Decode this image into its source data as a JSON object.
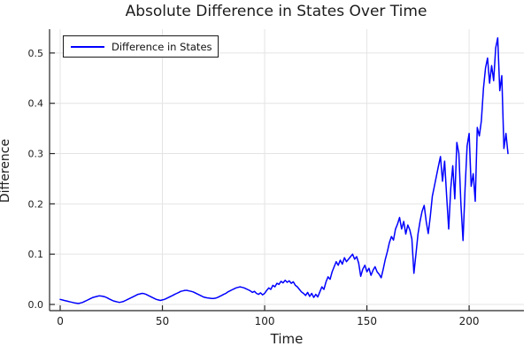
{
  "figure": {
    "background_color": "#ffffff",
    "axis_color": "#262626",
    "grid_color": "#e4e4e4",
    "text_color": "#1c1c1c"
  },
  "chart_data": {
    "type": "line",
    "title": "Absolute Difference in States Over Time",
    "xlabel": "Time",
    "ylabel": "Difference",
    "legend": [
      "Difference in States"
    ],
    "legend_position": "top-left",
    "line_color": "#0000ff",
    "grid": true,
    "xlim": [
      -5.2,
      226.8
    ],
    "ylim": [
      -0.0123,
      0.5473
    ],
    "xticks": [
      0,
      50,
      100,
      150,
      200
    ],
    "xtick_labels": [
      "0",
      "50",
      "100",
      "150",
      "200"
    ],
    "yticks": [
      0.0,
      0.1,
      0.2,
      0.3,
      0.4,
      0.5
    ],
    "ytick_labels": [
      "0.0",
      "0.1",
      "0.2",
      "0.3",
      "0.4",
      "0.5"
    ],
    "series": [
      {
        "name": "Difference in States",
        "x_start": 0,
        "x_step": 1,
        "values": [
          0.01,
          0.009,
          0.008,
          0.007,
          0.006,
          0.005,
          0.004,
          0.003,
          0.0025,
          0.002,
          0.003,
          0.004,
          0.006,
          0.008,
          0.01,
          0.012,
          0.014,
          0.015,
          0.016,
          0.017,
          0.0168,
          0.016,
          0.015,
          0.013,
          0.011,
          0.009,
          0.007,
          0.006,
          0.005,
          0.004,
          0.005,
          0.006,
          0.008,
          0.01,
          0.012,
          0.014,
          0.016,
          0.018,
          0.02,
          0.021,
          0.022,
          0.0215,
          0.02,
          0.018,
          0.016,
          0.014,
          0.012,
          0.01,
          0.009,
          0.008,
          0.009,
          0.01,
          0.012,
          0.014,
          0.016,
          0.018,
          0.02,
          0.022,
          0.024,
          0.026,
          0.027,
          0.028,
          0.028,
          0.027,
          0.026,
          0.025,
          0.023,
          0.021,
          0.019,
          0.017,
          0.015,
          0.014,
          0.013,
          0.0125,
          0.012,
          0.012,
          0.0125,
          0.014,
          0.016,
          0.018,
          0.02,
          0.022,
          0.025,
          0.027,
          0.029,
          0.031,
          0.033,
          0.034,
          0.035,
          0.034,
          0.033,
          0.031,
          0.029,
          0.027,
          0.024,
          0.026,
          0.022,
          0.02,
          0.023,
          0.019,
          0.022,
          0.028,
          0.033,
          0.03,
          0.038,
          0.035,
          0.042,
          0.04,
          0.046,
          0.043,
          0.048,
          0.044,
          0.047,
          0.042,
          0.045,
          0.038,
          0.035,
          0.03,
          0.025,
          0.022,
          0.018,
          0.024,
          0.016,
          0.022,
          0.014,
          0.02,
          0.015,
          0.025,
          0.035,
          0.03,
          0.045,
          0.055,
          0.05,
          0.065,
          0.075,
          0.085,
          0.078,
          0.088,
          0.08,
          0.093,
          0.085,
          0.09,
          0.095,
          0.1,
          0.09,
          0.095,
          0.082,
          0.056,
          0.07,
          0.078,
          0.065,
          0.072,
          0.058,
          0.068,
          0.075,
          0.065,
          0.06,
          0.053,
          0.07,
          0.09,
          0.105,
          0.123,
          0.135,
          0.128,
          0.15,
          0.16,
          0.173,
          0.15,
          0.165,
          0.14,
          0.158,
          0.148,
          0.13,
          0.062,
          0.1,
          0.14,
          0.165,
          0.185,
          0.197,
          0.165,
          0.141,
          0.175,
          0.215,
          0.235,
          0.255,
          0.275,
          0.294,
          0.245,
          0.285,
          0.215,
          0.15,
          0.23,
          0.276,
          0.21,
          0.322,
          0.3,
          0.2,
          0.127,
          0.23,
          0.315,
          0.34,
          0.235,
          0.26,
          0.205,
          0.352,
          0.335,
          0.365,
          0.43,
          0.47,
          0.49,
          0.44,
          0.475,
          0.445,
          0.51,
          0.53,
          0.425,
          0.455,
          0.31,
          0.34,
          0.3
        ]
      }
    ]
  }
}
